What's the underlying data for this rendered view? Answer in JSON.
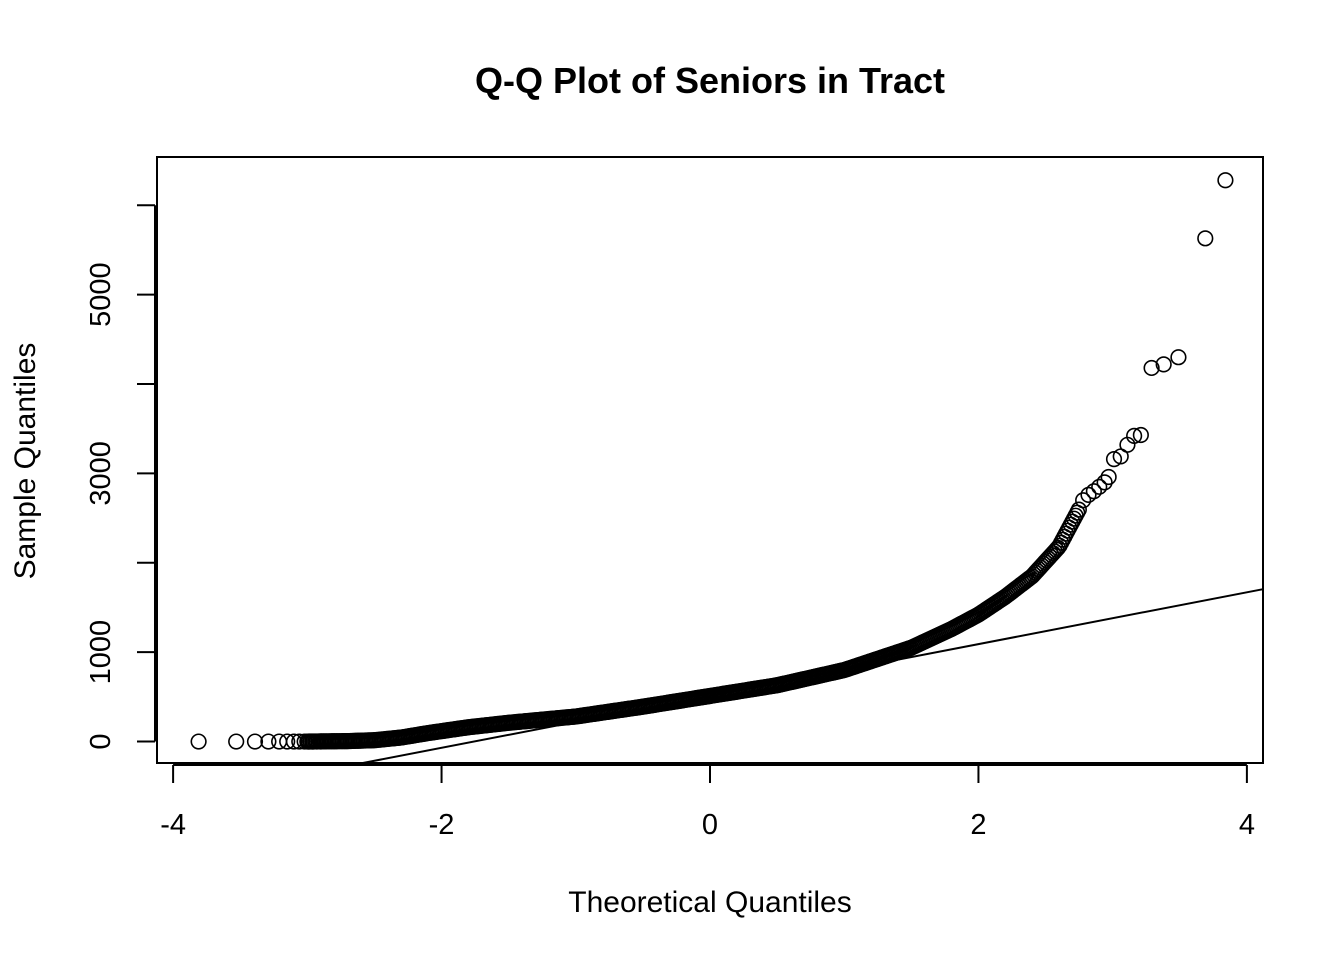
{
  "chart_data": {
    "type": "scatter",
    "title": "Q-Q Plot of Seniors in Tract",
    "xlabel": "Theoretical Quantiles",
    "ylabel": "Sample Quantiles",
    "xlim": [
      -4.12,
      4.12
    ],
    "ylim": [
      -240,
      6540
    ],
    "x_ticks": [
      -4,
      -2,
      0,
      2,
      4
    ],
    "x_tick_labels": [
      "-4",
      "-2",
      "0",
      "2",
      "4"
    ],
    "y_ticks": [
      0,
      1000,
      2000,
      3000,
      4000,
      5000,
      6000
    ],
    "y_tick_labels": [
      "0",
      "1000",
      "",
      "3000",
      "",
      "5000",
      ""
    ],
    "grid": false,
    "legend": "none",
    "reference_line": {
      "intercept": 510,
      "slope": 290
    },
    "curve_knots": [
      [
        -3.0,
        0
      ],
      [
        -2.7,
        5
      ],
      [
        -2.5,
        15
      ],
      [
        -2.3,
        45
      ],
      [
        -2.1,
        95
      ],
      [
        -1.8,
        160
      ],
      [
        -1.5,
        210
      ],
      [
        -1.0,
        280
      ],
      [
        -0.5,
        390
      ],
      [
        0.0,
        510
      ],
      [
        0.5,
        630
      ],
      [
        1.0,
        800
      ],
      [
        1.5,
        1050
      ],
      [
        1.8,
        1260
      ],
      [
        2.0,
        1420
      ],
      [
        2.2,
        1620
      ],
      [
        2.4,
        1850
      ],
      [
        2.6,
        2180
      ],
      [
        2.75,
        2600
      ]
    ],
    "left_tail_x": [
      -3.81,
      -3.53,
      -3.39,
      -3.29,
      -3.21,
      -3.15,
      -3.1,
      -3.06,
      -3.02,
      -2.99,
      -2.96,
      -2.93,
      -2.9
    ],
    "outliers": [
      [
        2.78,
        2700
      ],
      [
        2.82,
        2760
      ],
      [
        2.86,
        2800
      ],
      [
        2.9,
        2850
      ],
      [
        2.94,
        2900
      ],
      [
        2.97,
        2960
      ],
      [
        3.01,
        3160
      ],
      [
        3.06,
        3190
      ],
      [
        3.11,
        3320
      ],
      [
        3.16,
        3420
      ],
      [
        3.21,
        3430
      ],
      [
        3.29,
        4180
      ],
      [
        3.38,
        4220
      ],
      [
        3.49,
        4300
      ],
      [
        3.69,
        5630
      ],
      [
        3.84,
        6280
      ]
    ]
  }
}
